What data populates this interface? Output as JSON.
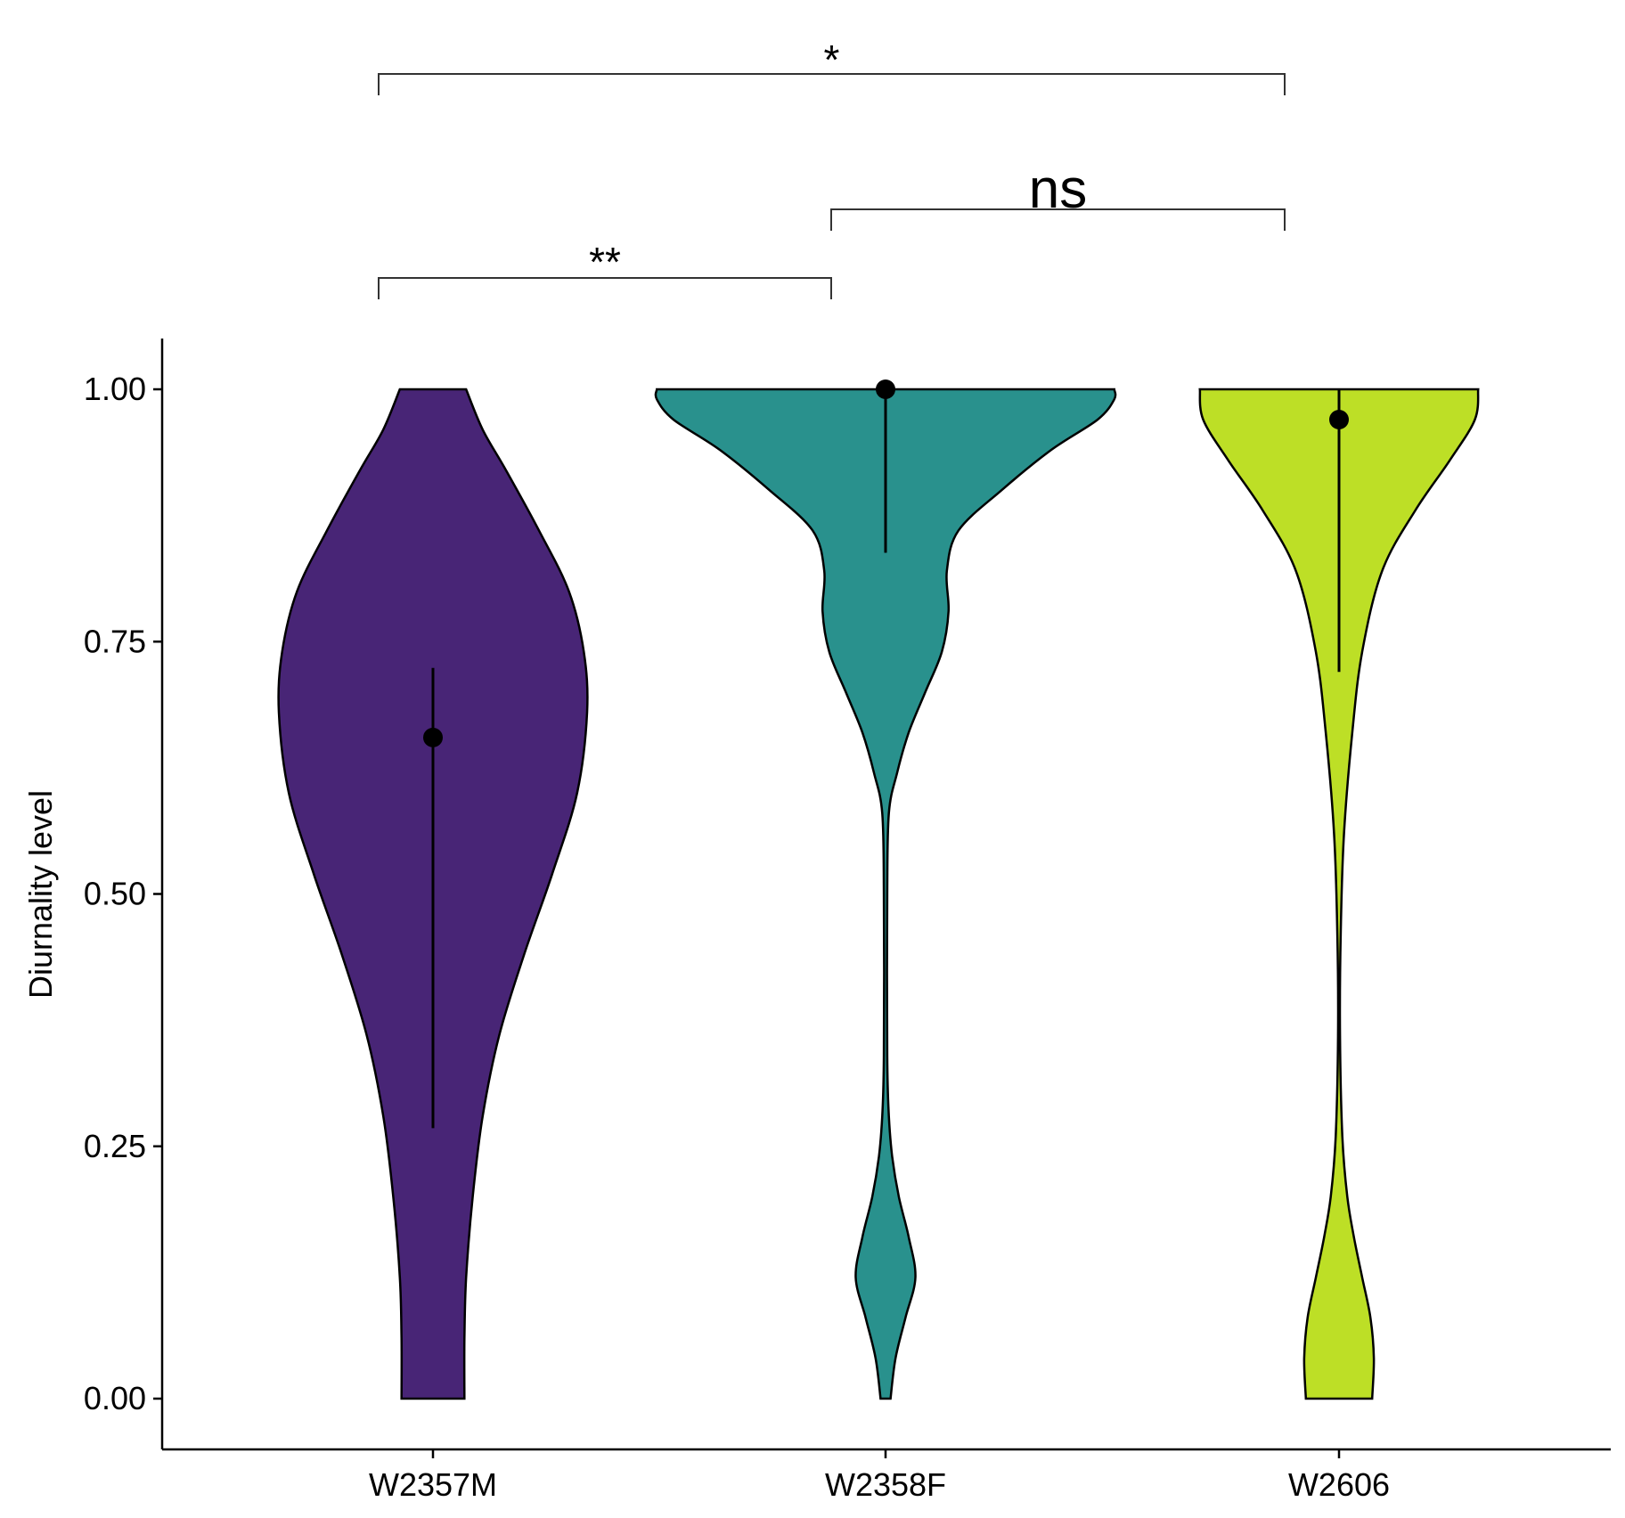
{
  "chart_data": {
    "type": "violin",
    "ylabel": "Diurnality level",
    "xlabel": "",
    "ylim": [
      0,
      1
    ],
    "yticks": [
      "0.00",
      "0.25",
      "0.50",
      "0.75",
      "1.00"
    ],
    "grid": false,
    "legend": "none",
    "categories": [
      "W2357M",
      "W2358F",
      "W2606"
    ],
    "series": [
      {
        "category": "W2357M",
        "color": "#482576",
        "point": 0.655,
        "range": [
          0.268,
          0.724
        ],
        "density": [
          [
            0.0,
            0.19
          ],
          [
            0.06,
            0.19
          ],
          [
            0.12,
            0.2
          ],
          [
            0.2,
            0.24
          ],
          [
            0.28,
            0.3
          ],
          [
            0.36,
            0.4
          ],
          [
            0.44,
            0.55
          ],
          [
            0.52,
            0.72
          ],
          [
            0.6,
            0.87
          ],
          [
            0.68,
            0.93
          ],
          [
            0.74,
            0.91
          ],
          [
            0.8,
            0.82
          ],
          [
            0.86,
            0.64
          ],
          [
            0.92,
            0.44
          ],
          [
            0.96,
            0.3
          ],
          [
            1.0,
            0.2
          ]
        ]
      },
      {
        "category": "W2358F",
        "color": "#29918d",
        "point": 1.0,
        "range": [
          0.838,
          1.0
        ],
        "density": [
          [
            0.0,
            0.03
          ],
          [
            0.04,
            0.06
          ],
          [
            0.08,
            0.12
          ],
          [
            0.12,
            0.18
          ],
          [
            0.16,
            0.14
          ],
          [
            0.2,
            0.08
          ],
          [
            0.24,
            0.04
          ],
          [
            0.28,
            0.02
          ],
          [
            0.34,
            0.01
          ],
          [
            0.5,
            0.01
          ],
          [
            0.58,
            0.02
          ],
          [
            0.62,
            0.07
          ],
          [
            0.66,
            0.14
          ],
          [
            0.7,
            0.24
          ],
          [
            0.74,
            0.34
          ],
          [
            0.78,
            0.38
          ],
          [
            0.82,
            0.37
          ],
          [
            0.86,
            0.44
          ],
          [
            0.9,
            0.7
          ],
          [
            0.94,
            1.0
          ],
          [
            0.97,
            1.28
          ],
          [
            0.99,
            1.38
          ],
          [
            1.0,
            1.38
          ]
        ]
      },
      {
        "category": "W2606",
        "color": "#bddf26",
        "point": 0.97,
        "range": [
          0.72,
          1.0
        ],
        "density": [
          [
            0.0,
            0.2
          ],
          [
            0.04,
            0.21
          ],
          [
            0.08,
            0.19
          ],
          [
            0.12,
            0.14
          ],
          [
            0.16,
            0.09
          ],
          [
            0.2,
            0.05
          ],
          [
            0.26,
            0.02
          ],
          [
            0.36,
            0.006
          ],
          [
            0.46,
            0.01
          ],
          [
            0.56,
            0.03
          ],
          [
            0.66,
            0.08
          ],
          [
            0.74,
            0.14
          ],
          [
            0.82,
            0.26
          ],
          [
            0.88,
            0.46
          ],
          [
            0.93,
            0.67
          ],
          [
            0.97,
            0.82
          ],
          [
            1.0,
            0.84
          ]
        ]
      }
    ],
    "comparisons": [
      {
        "from": "W2357M",
        "to": "W2358F",
        "label": "**"
      },
      {
        "from": "W2358F",
        "to": "W2606",
        "label": "ns"
      },
      {
        "from": "W2357M",
        "to": "W2606",
        "label": "*"
      }
    ]
  }
}
